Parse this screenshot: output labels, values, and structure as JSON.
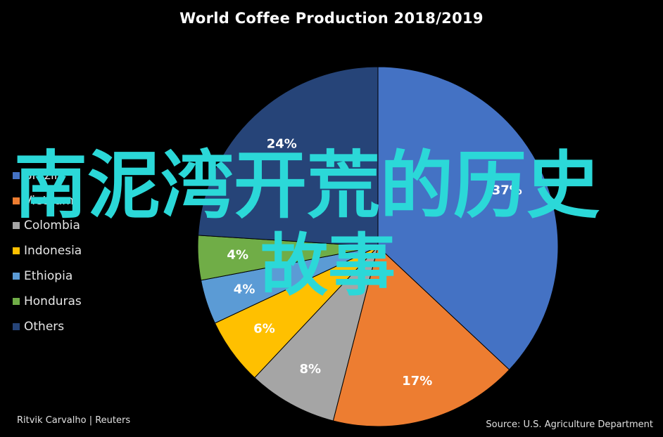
{
  "chart_data": {
    "type": "pie",
    "title": "World Coffee Production 2018/2019",
    "slices": [
      {
        "label": "Brazil",
        "value": 37,
        "display": "37%",
        "color": "#4472C4"
      },
      {
        "label": "Vietnam",
        "value": 17,
        "display": "17%",
        "color": "#ED7D31"
      },
      {
        "label": "Colombia",
        "value": 8,
        "display": "8%",
        "color": "#A5A5A5"
      },
      {
        "label": "Indonesia",
        "value": 6,
        "display": "6%",
        "color": "#FFC000"
      },
      {
        "label": "Ethiopia",
        "value": 4,
        "display": "4%",
        "color": "#5B9BD5"
      },
      {
        "label": "Honduras",
        "value": 4,
        "display": "4%",
        "color": "#70AD47"
      },
      {
        "label": "Others",
        "value": 24,
        "display": "24%",
        "color": "#264478"
      }
    ],
    "legend_position": "left"
  },
  "overlay_text": {
    "line1": "南泥湾开荒的历史",
    "line2": "故事"
  },
  "credit": "Ritvik Carvalho | Reuters",
  "source": "Source: U.S. Agriculture Department"
}
